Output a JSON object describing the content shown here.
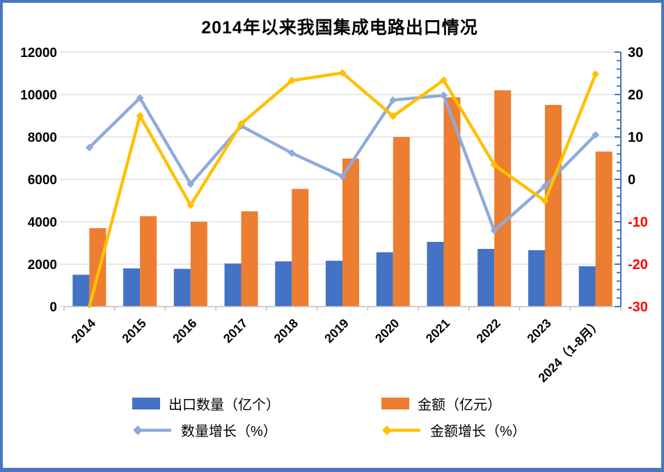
{
  "chart_data": {
    "type": "combo-bar-line",
    "title": "2014年以来我国集成电路出口情况",
    "categories": [
      "2014",
      "2015",
      "2016",
      "2017",
      "2018",
      "2019",
      "2020",
      "2021",
      "2022",
      "2023",
      "2024（1-8月）"
    ],
    "series": [
      {
        "name": "出口数量（亿个）",
        "type": "bar",
        "axis": "left",
        "color": "#4472C4",
        "values": [
          1500,
          1800,
          1780,
          2030,
          2130,
          2160,
          2560,
          3050,
          2720,
          2660,
          1900
        ]
      },
      {
        "name": "金额（亿元）",
        "type": "bar",
        "axis": "left",
        "color": "#ED7D31",
        "values": [
          3700,
          4260,
          4000,
          4490,
          5550,
          6980,
          8000,
          9870,
          10200,
          9510,
          7310
        ]
      },
      {
        "name": "数量增长（%）",
        "type": "line",
        "axis": "right",
        "color": "#8FAADC",
        "values": [
          7.5,
          19.2,
          -1.1,
          12.6,
          6.2,
          0.7,
          18.7,
          19.8,
          -12.1,
          -1.6,
          10.5
        ]
      },
      {
        "name": "金额增长（%）",
        "type": "line",
        "axis": "right",
        "color": "#FFC000",
        "values": [
          -30,
          15,
          -6.1,
          13.1,
          23.3,
          25.1,
          14.9,
          23.4,
          3.4,
          -5.1,
          24.8
        ]
      }
    ],
    "left_axis": {
      "min": 0,
      "max": 12000,
      "step": 2000,
      "tick_labels": [
        "0",
        "2000",
        "4000",
        "6000",
        "8000",
        "10000",
        "12000"
      ]
    },
    "right_axis": {
      "min": -30,
      "max": 30,
      "step": 10,
      "minor_step": 2,
      "tick_labels": [
        "-30",
        "-20",
        "-10",
        "0",
        "10",
        "20",
        "30"
      ],
      "negative_label_color": "#FF0000",
      "axis_line_color": "#4472C4"
    },
    "grid": true,
    "gridline_color": "#D9D9D9",
    "x_axis_line_color": "#BFBFBF",
    "legend_position": "bottom"
  }
}
